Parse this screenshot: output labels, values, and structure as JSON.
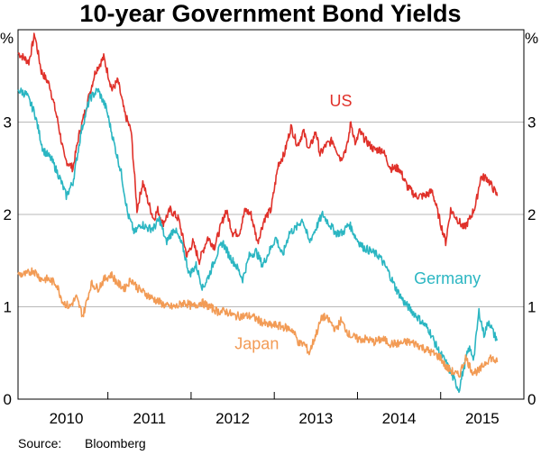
{
  "title": "10-year Government Bond Yields",
  "source": {
    "label": "Source:",
    "value": "Bloomberg"
  },
  "chart_data": {
    "type": "line",
    "title": "10-year Government Bond Yields",
    "unit_left": "%",
    "unit_right": "%",
    "xlim": [
      2009.42,
      2015.5
    ],
    "ylim": [
      0,
      4
    ],
    "y_ticks": [
      0,
      1,
      2,
      3
    ],
    "x_tick_labels": [
      {
        "label": "2010",
        "x": 2010.0
      },
      {
        "label": "2011",
        "x": 2011.0
      },
      {
        "label": "2012",
        "x": 2012.0
      },
      {
        "label": "2013",
        "x": 2013.0
      },
      {
        "label": "2014",
        "x": 2014.0
      },
      {
        "label": "2015",
        "x": 2015.0
      }
    ],
    "x_boundaries": [
      2010.5,
      2011.5,
      2012.5,
      2013.5,
      2014.5
    ],
    "grid": true,
    "series": [
      {
        "name": "US",
        "color": "#e0312a",
        "x": [
          2009.42,
          2009.55,
          2009.62,
          2009.7,
          2009.8,
          2009.9,
          2009.98,
          2010.08,
          2010.15,
          2010.25,
          2010.35,
          2010.45,
          2010.55,
          2010.62,
          2010.7,
          2010.78,
          2010.85,
          2010.92,
          2010.98,
          2011.05,
          2011.1,
          2011.16,
          2011.25,
          2011.35,
          2011.45,
          2011.52,
          2011.6,
          2011.7,
          2011.78,
          2011.85,
          2011.92,
          2012.0,
          2012.08,
          2012.15,
          2012.22,
          2012.3,
          2012.38,
          2012.46,
          2012.55,
          2012.62,
          2012.7,
          2012.78,
          2012.85,
          2012.92,
          2013.0,
          2013.05,
          2013.12,
          2013.2,
          2013.3,
          2013.38,
          2013.42,
          2013.48,
          2013.52,
          2013.6,
          2013.7,
          2013.8,
          2013.9,
          2014.0,
          2014.1,
          2014.2,
          2014.3,
          2014.4,
          2014.5,
          2014.56,
          2014.62,
          2014.7,
          2014.78,
          2014.85,
          2014.92,
          2014.98,
          2015.05,
          2015.12,
          2015.18
        ],
        "y": [
          3.75,
          3.65,
          3.95,
          3.55,
          3.4,
          3.0,
          2.6,
          2.5,
          2.85,
          3.2,
          3.55,
          3.7,
          3.35,
          3.45,
          3.1,
          2.9,
          2.05,
          2.35,
          2.15,
          1.95,
          2.05,
          1.9,
          2.05,
          1.95,
          1.55,
          1.7,
          1.5,
          1.75,
          1.65,
          1.85,
          2.05,
          1.8,
          1.8,
          2.05,
          2.0,
          1.7,
          1.95,
          2.05,
          2.55,
          2.65,
          2.95,
          2.75,
          2.9,
          2.7,
          2.9,
          2.65,
          2.75,
          2.8,
          2.6,
          2.75,
          3.0,
          2.75,
          2.9,
          2.8,
          2.7,
          2.7,
          2.5,
          2.5,
          2.3,
          2.2,
          2.2,
          2.25,
          1.9,
          1.7,
          2.05,
          1.95,
          1.85,
          1.95,
          2.1,
          2.4,
          2.4,
          2.3,
          2.2
        ]
      },
      {
        "name": "Germany",
        "color": "#2bb6c2",
        "x": [
          2009.42,
          2009.52,
          2009.62,
          2009.72,
          2009.82,
          2009.92,
          2010.0,
          2010.08,
          2010.18,
          2010.28,
          2010.38,
          2010.48,
          2010.58,
          2010.66,
          2010.74,
          2010.82,
          2010.9,
          2010.98,
          2011.05,
          2011.12,
          2011.2,
          2011.3,
          2011.4,
          2011.48,
          2011.56,
          2011.64,
          2011.72,
          2011.8,
          2011.88,
          2011.96,
          2012.04,
          2012.12,
          2012.2,
          2012.28,
          2012.36,
          2012.44,
          2012.52,
          2012.6,
          2012.68,
          2012.76,
          2012.84,
          2012.92,
          2013.0,
          2013.08,
          2013.16,
          2013.24,
          2013.32,
          2013.4,
          2013.48,
          2013.56,
          2013.66,
          2013.76,
          2013.86,
          2013.96,
          2014.06,
          2014.16,
          2014.26,
          2014.36,
          2014.46,
          2014.56,
          2014.64,
          2014.72,
          2014.78,
          2014.84,
          2014.9,
          2014.96,
          2015.02,
          2015.08,
          2015.14,
          2015.18
        ],
        "y": [
          3.35,
          3.3,
          3.1,
          2.7,
          2.6,
          2.4,
          2.2,
          2.35,
          2.9,
          3.25,
          3.35,
          3.15,
          2.75,
          2.45,
          2.0,
          1.8,
          1.9,
          1.85,
          1.85,
          1.95,
          1.7,
          1.85,
          1.65,
          1.35,
          1.45,
          1.2,
          1.35,
          1.55,
          1.7,
          1.55,
          1.45,
          1.3,
          1.55,
          1.6,
          1.45,
          1.6,
          1.75,
          1.55,
          1.8,
          1.85,
          1.95,
          1.7,
          1.85,
          2.0,
          1.9,
          1.8,
          1.8,
          1.9,
          1.75,
          1.65,
          1.6,
          1.55,
          1.4,
          1.2,
          1.05,
          0.95,
          0.85,
          0.75,
          0.55,
          0.4,
          0.25,
          0.1,
          0.35,
          0.55,
          0.45,
          0.95,
          0.7,
          0.85,
          0.7,
          0.65
        ]
      },
      {
        "name": "Japan",
        "color": "#f29b55",
        "x": [
          2009.42,
          2009.52,
          2009.6,
          2009.7,
          2009.78,
          2009.88,
          2009.96,
          2010.04,
          2010.12,
          2010.2,
          2010.3,
          2010.38,
          2010.46,
          2010.54,
          2010.62,
          2010.7,
          2010.78,
          2010.86,
          2010.94,
          2011.02,
          2011.12,
          2011.22,
          2011.32,
          2011.42,
          2011.52,
          2011.62,
          2011.72,
          2011.82,
          2011.92,
          2012.02,
          2012.12,
          2012.22,
          2012.32,
          2012.42,
          2012.52,
          2012.62,
          2012.72,
          2012.8,
          2012.86,
          2012.92,
          2013.0,
          2013.08,
          2013.16,
          2013.24,
          2013.3,
          2013.4,
          2013.5,
          2013.6,
          2013.7,
          2013.8,
          2013.9,
          2014.0,
          2014.1,
          2014.2,
          2014.3,
          2014.4,
          2014.5,
          2014.56,
          2014.64,
          2014.72,
          2014.8,
          2014.88,
          2014.96,
          2015.04,
          2015.1,
          2015.18
        ],
        "y": [
          1.35,
          1.35,
          1.4,
          1.3,
          1.3,
          1.25,
          1.05,
          1.0,
          1.1,
          0.9,
          1.25,
          1.2,
          1.3,
          1.35,
          1.25,
          1.2,
          1.3,
          1.2,
          1.15,
          1.1,
          1.05,
          1.0,
          1.0,
          1.05,
          1.0,
          1.05,
          1.0,
          0.95,
          0.95,
          0.9,
          0.9,
          0.9,
          0.85,
          0.8,
          0.8,
          0.78,
          0.75,
          0.6,
          0.6,
          0.5,
          0.7,
          0.9,
          0.85,
          0.75,
          0.85,
          0.7,
          0.65,
          0.65,
          0.62,
          0.65,
          0.6,
          0.6,
          0.62,
          0.6,
          0.55,
          0.5,
          0.45,
          0.35,
          0.3,
          0.25,
          0.45,
          0.3,
          0.3,
          0.4,
          0.45,
          0.4
        ]
      }
    ],
    "labels": [
      {
        "text": "US",
        "series": "US",
        "x": 2013.3,
        "y": 3.17
      },
      {
        "text": "Germany",
        "series": "Germany",
        "x": 2014.58,
        "y": 1.25
      },
      {
        "text": "Japan",
        "series": "Japan",
        "x": 2012.29,
        "y": 0.54
      }
    ]
  }
}
